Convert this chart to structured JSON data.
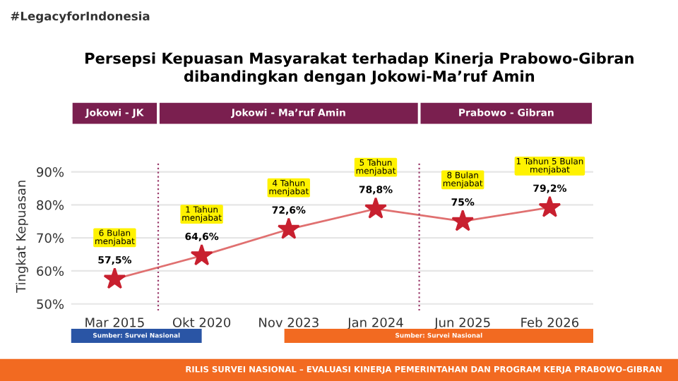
{
  "chart_data": {
    "type": "line",
    "title": "Persepsi Kepuasan Masyarakat terhadap Kinerja Prabowo-Gibran\ndibandingkan dengan Jokowi-Ma’ruf Amin",
    "ylabel": "Tingkat Kepuasan",
    "categories": [
      "Mar 2015",
      "Okt 2020",
      "Nov 2023",
      "Jan 2024",
      "Jun 2025",
      "Feb 2026"
    ],
    "series": [
      {
        "color": "#c8202f",
        "values": [
          57.5,
          64.6,
          72.6,
          78.8,
          75,
          79.2
        ],
        "value_labels": [
          "57,5%",
          "64,6%",
          "72,6%",
          "78,8%",
          "75%",
          "79,2%"
        ]
      }
    ],
    "marker": "star",
    "line_style": "solid",
    "ylim": [
      48,
      93
    ],
    "yticks": [
      {
        "value": 50,
        "label": "50%"
      },
      {
        "value": 60,
        "label": "60%"
      },
      {
        "value": 70,
        "label": "70%"
      },
      {
        "value": 80,
        "label": "80%"
      },
      {
        "value": 90,
        "label": "90%"
      }
    ],
    "grid": "y",
    "legend": false,
    "annotations": [
      "6 Bulan\nmenjabat",
      "1 Tahun\nmenjabat",
      "4 Tahun\nmenjabat",
      "5 Tahun\nmenjabat",
      "8 Bulan\nmenjabat",
      "1 Tahun 5 Bulan\nmenjabat",
      "#LegacyforIndonesia",
      "Jokowi - JK",
      "Jokowi - Ma’ruf Amin",
      "Prabowo - Gibran",
      "Sumber: Survei Nasional",
      "Sumber: Survei Nasional",
      "RILIS SURVEI NASIONAL – EVALUASI KINERJA PEMERINTAHAN DAN PROGRAM KERJA PRABOWO–GIBRAN"
    ]
  }
}
